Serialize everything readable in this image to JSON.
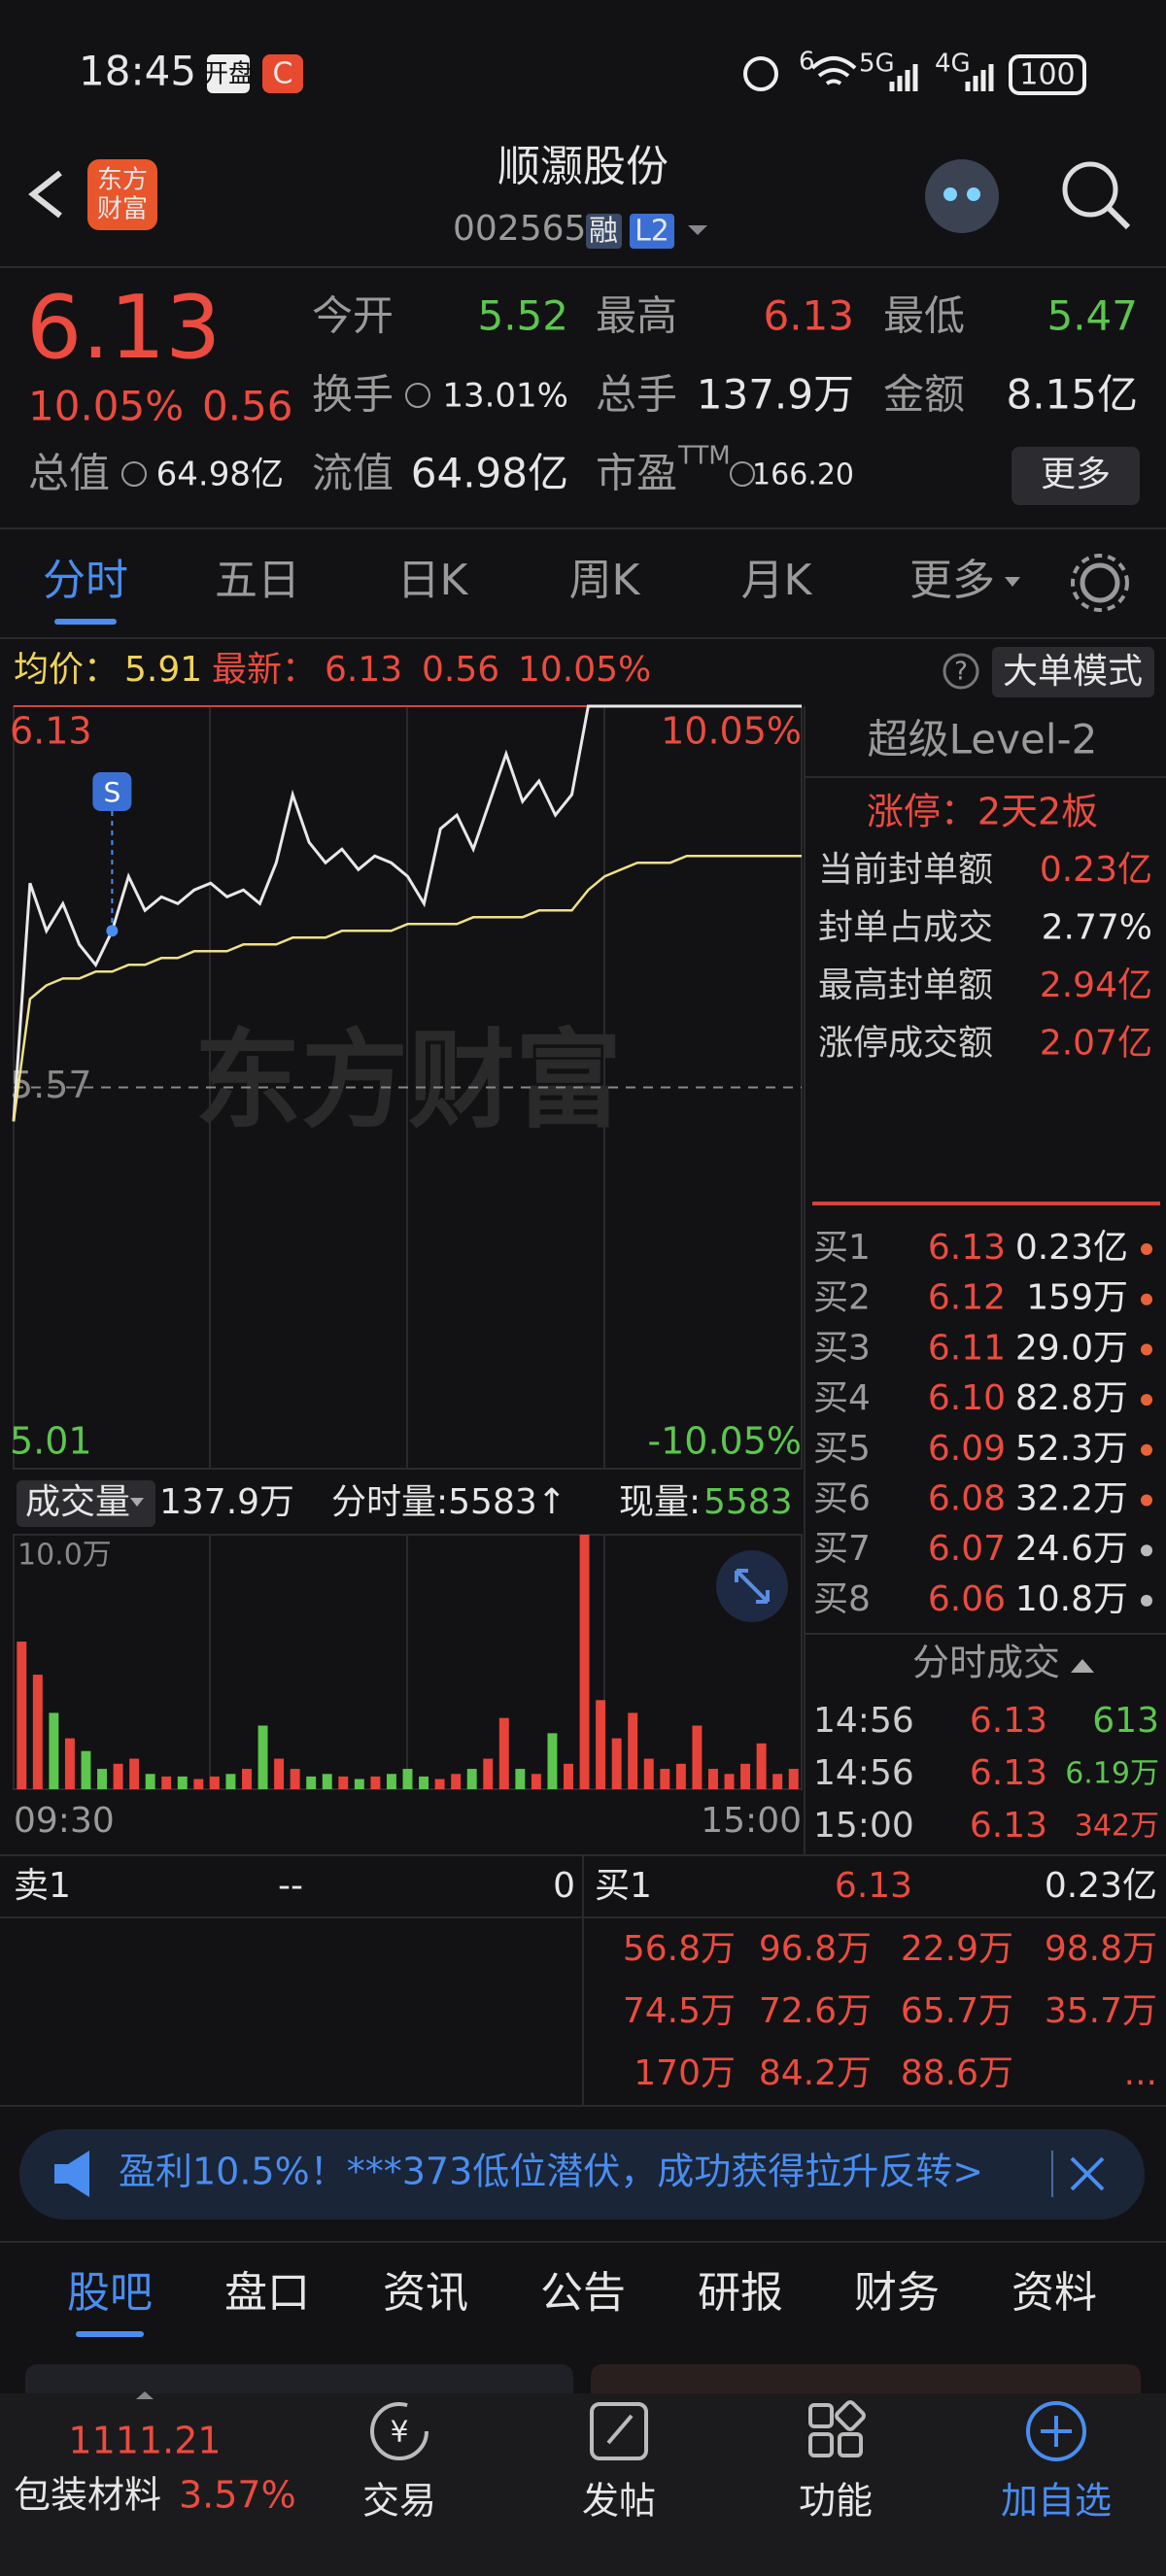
{
  "status_bar": {
    "time": "18:45",
    "badge": "开盘",
    "wifi": "6",
    "network_1": "5G",
    "network_2": "4G",
    "battery": "100"
  },
  "header": {
    "logo_lines": [
      "东方",
      "财富"
    ],
    "title": "顺灏股份",
    "code": "002565",
    "badges": [
      "融",
      "L2"
    ]
  },
  "quote": {
    "price": "6.13",
    "change_pct": "10.05%",
    "change": "0.56",
    "fields": [
      {
        "label": "今开",
        "value": "5.52"
      },
      {
        "label": "最高",
        "value": "6.13"
      },
      {
        "label": "最低",
        "value": "5.47"
      },
      {
        "label": "换手",
        "value": "13.01%"
      },
      {
        "label": "总手",
        "value": "137.9万"
      },
      {
        "label": "金额",
        "value": "8.15亿"
      },
      {
        "label": "总值",
        "value": "64.98亿"
      },
      {
        "label": "流值",
        "value": "64.98亿"
      },
      {
        "label": "市盈",
        "value": "166.20"
      }
    ],
    "pe_superscript": "TTM",
    "more_button": "更多"
  },
  "tabs": [
    "分时",
    "五日",
    "日K",
    "周K",
    "月K",
    "更多"
  ],
  "info_bar": {
    "avg_label": "均价：",
    "avg": "5.91",
    "last_label": "最新：",
    "last": "6.13",
    "change": "0.56",
    "change_pct": "10.05%",
    "mode_button": "大单模式"
  },
  "price_chart": {
    "type": "line",
    "watermark": "东方财富",
    "marker": "S",
    "ylim": [
      5.01,
      6.13
    ],
    "yticks": [
      6.13,
      5.57,
      5.01
    ],
    "y2lim": [
      -10.05,
      10.05
    ],
    "y2ticks": [
      {
        "value": 10.05,
        "label": "10.05%"
      },
      {
        "value": -10.05,
        "label": "-10.05%"
      }
    ],
    "series": [
      {
        "name": "price",
        "color": "#e8e8e8",
        "values": [
          5.52,
          5.87,
          5.8,
          5.84,
          5.78,
          5.75,
          5.8,
          5.88,
          5.83,
          5.85,
          5.84,
          5.86,
          5.87,
          5.85,
          5.86,
          5.84,
          5.9,
          6.0,
          5.93,
          5.9,
          5.92,
          5.89,
          5.91,
          5.9,
          5.88,
          5.84,
          5.95,
          5.97,
          5.92,
          5.99,
          6.06,
          5.99,
          6.02,
          5.97,
          6.0,
          6.13,
          6.13,
          6.13,
          6.13,
          6.13,
          6.13,
          6.13,
          6.13,
          6.13,
          6.13,
          6.13,
          6.13,
          6.13,
          6.13
        ]
      },
      {
        "name": "avg",
        "color": "#efe08a",
        "values": [
          5.52,
          5.7,
          5.72,
          5.73,
          5.73,
          5.74,
          5.74,
          5.75,
          5.75,
          5.76,
          5.76,
          5.77,
          5.77,
          5.77,
          5.78,
          5.78,
          5.78,
          5.79,
          5.79,
          5.79,
          5.8,
          5.8,
          5.8,
          5.8,
          5.81,
          5.81,
          5.81,
          5.81,
          5.82,
          5.82,
          5.82,
          5.82,
          5.83,
          5.83,
          5.83,
          5.86,
          5.88,
          5.89,
          5.9,
          5.9,
          5.9,
          5.91,
          5.91,
          5.91,
          5.91,
          5.91,
          5.91,
          5.91,
          5.91
        ]
      }
    ]
  },
  "volume_bar": {
    "selector": "成交量",
    "total": "137.9万",
    "minute": "分时量:5583↑",
    "current_label": "现量:",
    "current": "5583"
  },
  "volume_chart": {
    "type": "bar",
    "up_color": "#e8433a",
    "down_color": "#5cc64e",
    "ylim": [
      0,
      100000
    ],
    "yticks": [
      {
        "value": 100000,
        "label": "10.0万"
      }
    ],
    "x_labels": [
      "09:30",
      "15:00"
    ],
    "values": [
      58000,
      45000,
      30000,
      20000,
      15000,
      8000,
      10000,
      12000,
      6000,
      5000,
      5000,
      4000,
      5000,
      6000,
      8000,
      25000,
      12000,
      8000,
      5000,
      6000,
      5000,
      4000,
      5000,
      6000,
      8000,
      5000,
      4000,
      6000,
      8000,
      12000,
      28000,
      8000,
      6000,
      22000,
      10000,
      100000,
      35000,
      20000,
      30000,
      12000,
      8000,
      10000,
      25000,
      8000,
      6000,
      10000,
      18000,
      6000,
      8000
    ]
  },
  "level2": {
    "title": "超级Level-2",
    "limit": "涨停：2天2板",
    "stats": [
      {
        "label": "当前封单额",
        "value": "0.23亿"
      },
      {
        "label": "封单占成交",
        "value": "2.77%"
      },
      {
        "label": "最高封单额",
        "value": "2.94亿"
      },
      {
        "label": "涨停成交额",
        "value": "2.07亿"
      }
    ],
    "bids": [
      {
        "label": "买1",
        "price": "6.13",
        "volume": "0.23亿"
      },
      {
        "label": "买2",
        "price": "6.12",
        "volume": "159万"
      },
      {
        "label": "买3",
        "price": "6.11",
        "volume": "29.0万"
      },
      {
        "label": "买4",
        "price": "6.10",
        "volume": "82.8万"
      },
      {
        "label": "买5",
        "price": "6.09",
        "volume": "52.3万"
      },
      {
        "label": "买6",
        "price": "6.08",
        "volume": "32.2万"
      },
      {
        "label": "买7",
        "price": "6.07",
        "volume": "24.6万"
      },
      {
        "label": "买8",
        "price": "6.06",
        "volume": "10.8万"
      }
    ],
    "trades_title": "分时成交",
    "trades": [
      {
        "time": "14:56",
        "price": "6.13",
        "volume": "613"
      },
      {
        "time": "14:56",
        "price": "6.13",
        "volume": "6.19万"
      },
      {
        "time": "15:00",
        "price": "6.13",
        "volume": "342万"
      }
    ]
  },
  "order_book": {
    "sell1": {
      "label": "卖1",
      "price": "--",
      "volume": "0"
    },
    "buy1": {
      "label": "买1",
      "price": "6.13",
      "volume": "0.23亿"
    },
    "queue": [
      [
        "56.8万",
        "96.8万",
        "22.9万",
        "98.8万"
      ],
      [
        "74.5万",
        "72.6万",
        "65.7万",
        "35.7万"
      ],
      [
        "170万",
        "84.2万",
        "88.6万",
        "..."
      ]
    ]
  },
  "banner": {
    "text": "盈利10.5%！***373低位潜伏，成功获得拉升反转>"
  },
  "bottom_tabs": [
    "股吧",
    "盘口",
    "资讯",
    "公告",
    "研报",
    "财务",
    "资料"
  ],
  "nav": {
    "index_value": "1111.21",
    "index_name": "包装材料",
    "index_change": "3.57%",
    "items": [
      "交易",
      "发帖",
      "功能",
      "加自选"
    ]
  }
}
